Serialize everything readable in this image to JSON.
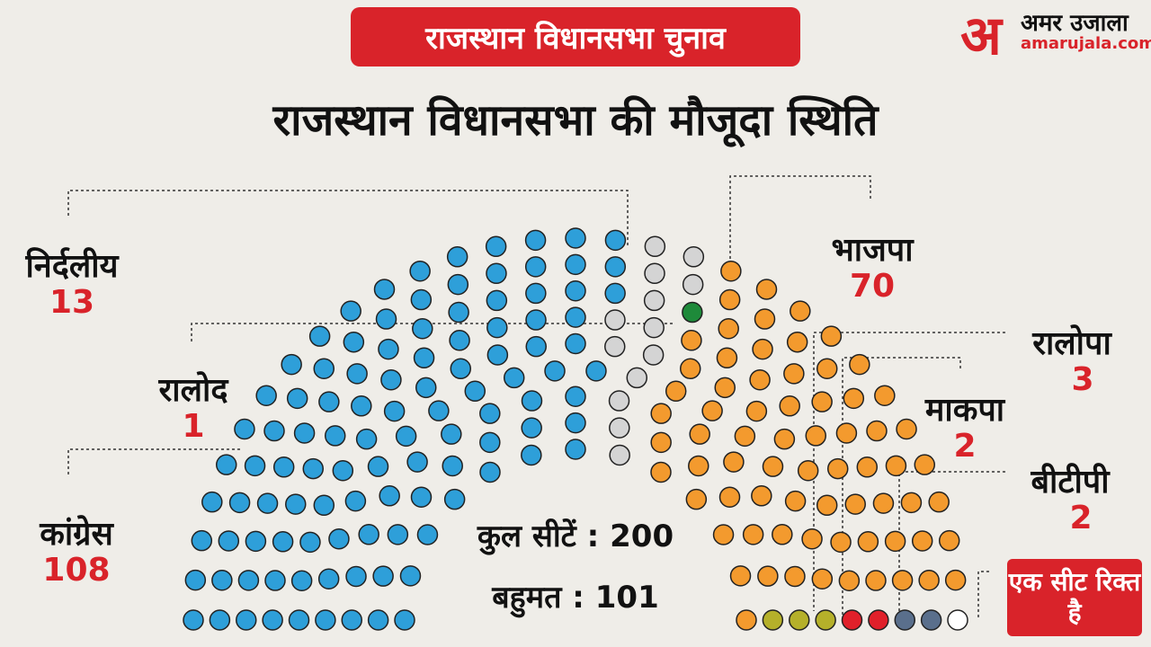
{
  "header": {
    "badge": "राजस्थान विधानसभा चुनाव",
    "title": "राजस्थान विधानसभा की मौजूदा स्थिति",
    "logo_mark": "अ",
    "logo_name": "अमर उजाला",
    "logo_site": "amarujala.com"
  },
  "chart_data": {
    "type": "parliament",
    "series": [
      {
        "name": "कांग्रेस",
        "color": "#2e9fd9",
        "value": 108
      },
      {
        "name": "निर्दलीय",
        "color": "#d4d4d4",
        "value": 13
      },
      {
        "name": "रालोद",
        "color": "#1e8a3a",
        "value": 1
      },
      {
        "name": "भाजपा",
        "color": "#f39a2e",
        "value": 70
      },
      {
        "name": "रालोपा",
        "color": "#b5b02a",
        "value": 3
      },
      {
        "name": "माकपा",
        "color": "#e0202a",
        "value": 2
      },
      {
        "name": "बीटीपी",
        "color": "#5a6f8c",
        "value": 2
      },
      {
        "name": "एक सीट रिक्त है",
        "color": "#ffffff",
        "value": 1
      }
    ],
    "total_label": "कुल सीटें",
    "total": 200,
    "majority_label": "बहुमत",
    "majority": 101,
    "separator": ":"
  }
}
